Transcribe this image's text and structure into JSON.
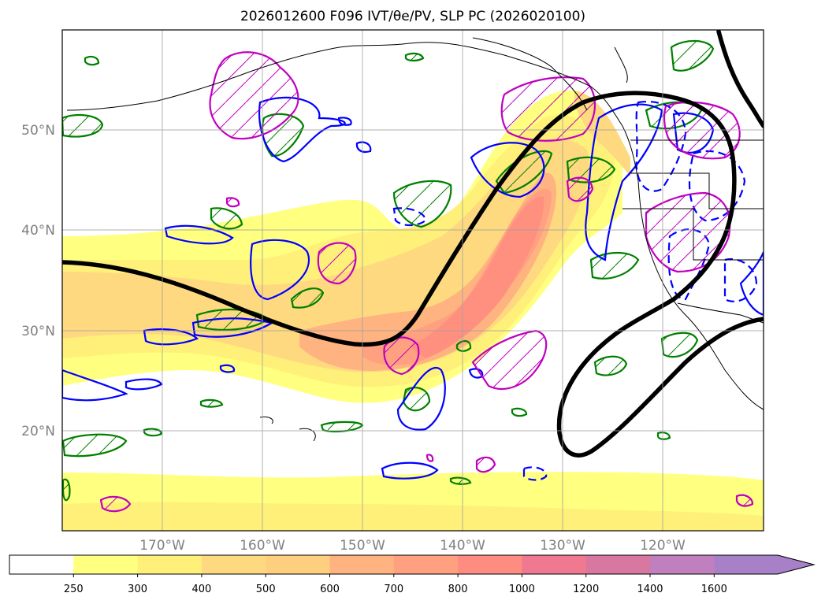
{
  "title": "2026012600 F096 IVT/θe/PV, SLP PC (2026020100)",
  "lat_labels": [
    "50°N",
    "40°N",
    "30°N",
    "20°N"
  ],
  "lon_labels": [
    "170°W",
    "160°W",
    "150°W",
    "140°W",
    "130°W",
    "120°W"
  ],
  "colorbar": {
    "ticks": [
      "250",
      "300",
      "400",
      "500",
      "600",
      "700",
      "800",
      "1000",
      "1200",
      "1400",
      "1600"
    ],
    "colors": [
      "#ffffff",
      "#ffff80",
      "#fff07a",
      "#ffd980",
      "#ffcf80",
      "#ffb380",
      "#ffa080",
      "#ff8c80",
      "#f07890",
      "#d878a0",
      "#c080c0",
      "#a880c8"
    ]
  },
  "contour_colors": {
    "slp": "#000000",
    "theta_e_positive": "#0000ff",
    "theta_e_negative": "#0000ff",
    "pv_green": "#008000",
    "pv_magenta": "#c000c0"
  }
}
